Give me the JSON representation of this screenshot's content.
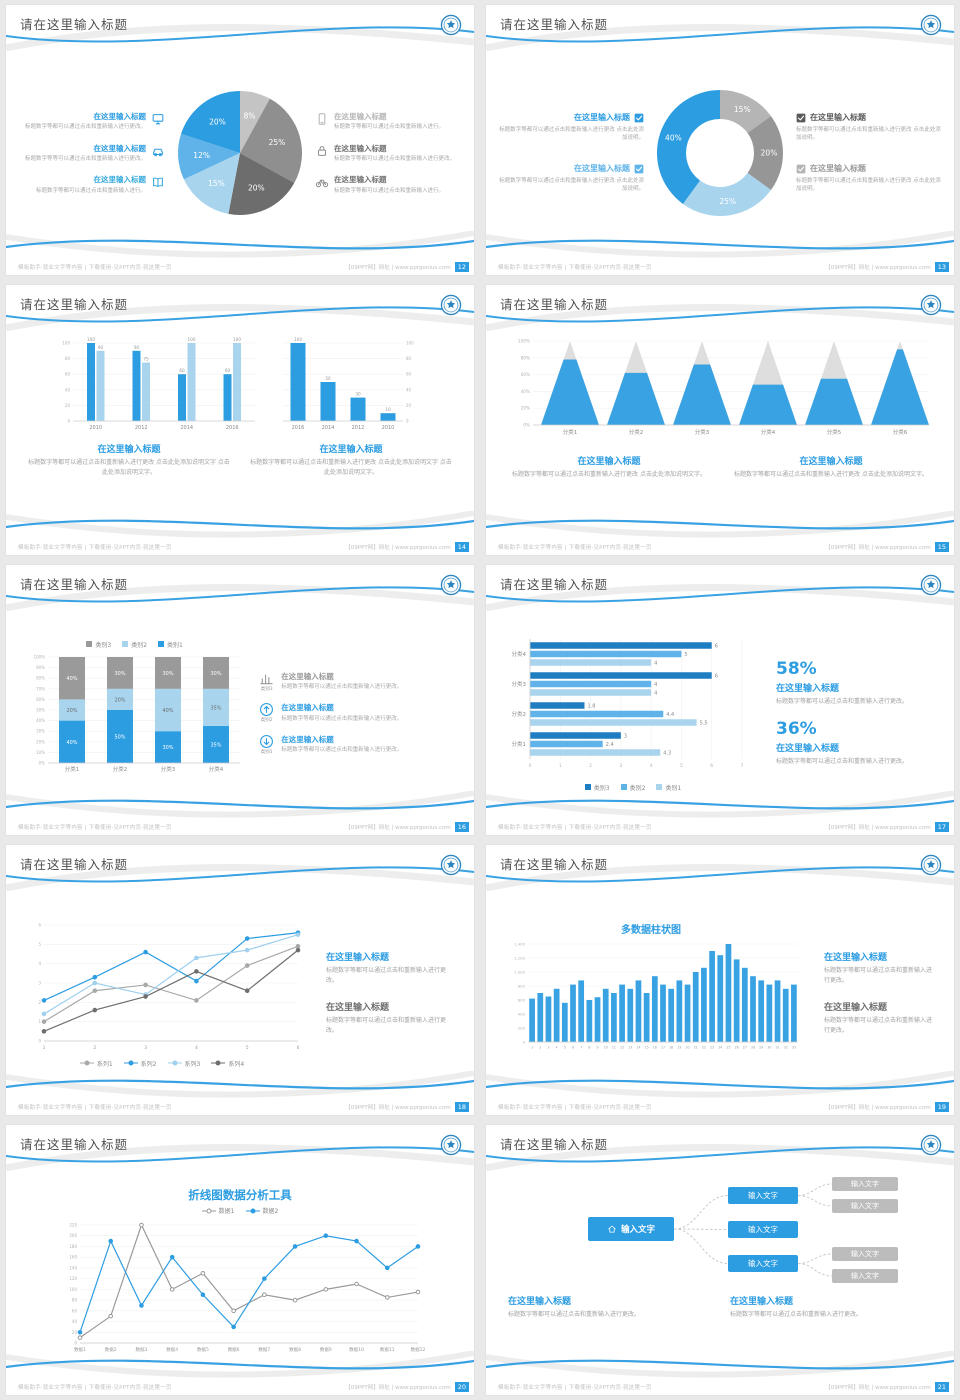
{
  "footer": {
    "left": "模板助手:就业文字等内容 | 下载使用·见PPT内页·就这第一页",
    "right": "【09PPT网】网址 | www.pptgenius.com"
  },
  "colors": {
    "accent_blue": "#2d9de2",
    "mid_blue": "#5fb3e8",
    "light_blue": "#a8d4ee",
    "dark_blue": "#1f7ec2",
    "dark_gray": "#6f6f6f",
    "mid_gray": "#9a9a9a",
    "light_gray": "#d9d9d9",
    "title_text": "#4f4f4f",
    "desc_text": "#a3a3a3"
  },
  "slides": [
    {
      "title": "请在这里输入标题",
      "page": "12",
      "type": "pie_callouts",
      "chart_data": {
        "type": "pie",
        "slices": [
          {
            "label": "8%",
            "value": 8,
            "color": "#c4c4c4"
          },
          {
            "label": "25%",
            "value": 25,
            "color": "#8f8f8f"
          },
          {
            "label": "20%",
            "value": 20,
            "color": "#6d6d6d"
          },
          {
            "label": "15%",
            "value": 15,
            "color": "#a8d4ee"
          },
          {
            "label": "12%",
            "value": 12,
            "color": "#5fb3e8"
          },
          {
            "label": "20%",
            "value": 20,
            "color": "#2d9de2"
          }
        ]
      },
      "left_items": [
        {
          "title": "在这里输入标题",
          "title_color": "#2d9de2",
          "icon": "monitor",
          "icon_color": "#2d9de2",
          "desc": "标题数字等都可以通过点击和重新输入进行更改。"
        },
        {
          "title": "在这里输入标题",
          "title_color": "#2d9de2",
          "icon": "car",
          "icon_color": "#2d9de2",
          "desc": "标题数字等等可以通过点击和重新输入进行更改。"
        },
        {
          "title": "在这里输入标题",
          "title_color": "#35aadc",
          "icon": "book",
          "icon_color": "#35aadc",
          "desc": "标题数字等都可以通过点击和重新输入进行。"
        }
      ],
      "right_items": [
        {
          "title": "在这里输入标题",
          "title_color": "#b5b5b5",
          "icon": "phone",
          "icon_color": "#b5b5b5",
          "desc": "标题数字等都可以通过点击和重新输入进行。"
        },
        {
          "title": "在这里输入标题",
          "title_color": "#6f6f6f",
          "icon": "lock",
          "icon_color": "#8f8f8f",
          "desc": "标题数字等都可以通过点击和重新输入进行更改。"
        },
        {
          "title": "在这里输入标题",
          "title_color": "#6f6f6f",
          "icon": "bike",
          "icon_color": "#8f8f8f",
          "desc": "标题数字等都可以通过点击和重新输入进行。"
        }
      ]
    },
    {
      "title": "请在这里输入标题",
      "page": "13",
      "type": "donut_checklist",
      "chart_data": {
        "type": "donut",
        "slices": [
          {
            "label": "15%",
            "value": 15,
            "color": "#b5b5b5"
          },
          {
            "label": "20%",
            "value": 20,
            "color": "#969696"
          },
          {
            "label": "25%",
            "value": 25,
            "color": "#a8d4ee"
          },
          {
            "label": "40%",
            "value": 40,
            "color": "#2d9de2"
          }
        ]
      },
      "left_items": [
        {
          "title": "在这里输入标题",
          "title_color": "#2d9de2",
          "check_color": "#2d9de2",
          "desc": "标题数字等都可以通过点击和重新输入进行更改 点击此处添加说明。"
        },
        {
          "title": "在这里输入标题",
          "title_color": "#5fb3e8",
          "check_color": "#5fb3e8",
          "desc": "标题数字等都可以通过点击和重新输入进行更改 点击此处添加说明。"
        }
      ],
      "right_items": [
        {
          "title": "在这里输入标题",
          "title_color": "#5a5a5a",
          "check_color": "#5a5a5a",
          "desc": "标题数字等都可以通过点击和重新输入进行更改 点击此处添加说明。"
        },
        {
          "title": "在这里输入标题",
          "title_color": "#9a9a9a",
          "check_color": "#b5b5b5",
          "desc": "标题数字等都可以通过点击和重新输入进行更改 点击此处添加说明。"
        }
      ]
    },
    {
      "title": "请在这里输入标题",
      "page": "14",
      "type": "dual_bar",
      "chart_data": [
        {
          "type": "bar",
          "categories": [
            "2010",
            "2012",
            "2014",
            "2016"
          ],
          "series": [
            {
              "name": "系列1",
              "values": [
                100,
                90,
                60,
                60
              ]
            },
            {
              "name": "系列2",
              "values": [
                90,
                75,
                100,
                100
              ]
            }
          ],
          "colors": [
            "#2d9de2",
            "#a8d4ee"
          ],
          "ymax": 100,
          "ystep": 20,
          "axis": "left"
        },
        {
          "type": "bar",
          "categories": [
            "2016",
            "2014",
            "2012",
            "2010"
          ],
          "series": [
            {
              "name": "系列1",
              "values": [
                100,
                50,
                30,
                10
              ]
            }
          ],
          "colors": [
            "#2d9de2"
          ],
          "ymax": 100,
          "ystep": 20,
          "axis": "right"
        }
      ],
      "blocks": [
        {
          "title": "在这里输入标题",
          "title_color": "#2d9de2",
          "desc": "标题数字等都可以通过点击和重新输入进行更改 点击此处添加说明文字 点击此处添加说明文字。"
        },
        {
          "title": "在这里输入标题",
          "title_color": "#2d9de2",
          "desc": "标题数字等都可以通过点击和重新输入进行更改 点击此处添加说明文字 点击此处添加说明文字。"
        }
      ]
    },
    {
      "title": "请在这里输入标题",
      "page": "15",
      "type": "pyramid",
      "chart_data": {
        "type": "pyramid",
        "categories": [
          "分类1",
          "分类2",
          "分类3",
          "分类4",
          "分类5",
          "分类6"
        ],
        "values_percent": [
          78,
          62,
          72,
          48,
          55,
          90
        ],
        "ylabels": [
          "0%",
          "20%",
          "40%",
          "60%",
          "80%",
          "100%"
        ]
      },
      "blocks": [
        {
          "title": "在这里输入标题",
          "title_color": "#2d9de2",
          "desc": "标题数字等都可以通过点击和重新输入进行更改 点击此处添加说明文字。"
        },
        {
          "title": "在这里输入标题",
          "title_color": "#2d9de2",
          "desc": "标题数字等都可以通过点击和重新输入进行更改 点击此处添加说明文字。"
        }
      ]
    },
    {
      "title": "请在这里输入标题",
      "page": "16",
      "type": "stacked_bar",
      "chart_data": {
        "type": "stacked_bar",
        "categories": [
          "分类1",
          "分类2",
          "分类3",
          "分类4"
        ],
        "series": [
          {
            "name": "类别1",
            "color": "#2d9de2",
            "label_color": "#ffffff",
            "values": [
              40,
              50,
              30,
              35
            ]
          },
          {
            "name": "类别2",
            "color": "#a8d4ee",
            "label_color": "#6b6b6b",
            "values": [
              20,
              20,
              40,
              35
            ]
          },
          {
            "name": "类别3",
            "color": "#9a9a9a",
            "label_color": "#ffffff",
            "values": [
              40,
              30,
              30,
              30
            ]
          }
        ],
        "legend": [
          {
            "label": "类别3",
            "color": "#9a9a9a"
          },
          {
            "label": "类别2",
            "color": "#a8d4ee"
          },
          {
            "label": "类别1",
            "color": "#2d9de2"
          }
        ]
      },
      "items": [
        {
          "icon": "barchart",
          "icon_color": "#9a9a9a",
          "caption": "类别3",
          "title": "在这里输入标题",
          "title_color": "#9a9a9a",
          "desc": "标题数字等都可以通过点击和重新输入进行更改。"
        },
        {
          "icon": "upload",
          "icon_color": "#2d9de2",
          "caption": "类别2",
          "title": "在这里输入标题",
          "title_color": "#2d9de2",
          "desc": "标题数字等都可以通过点击和重新输入进行更改。"
        },
        {
          "icon": "download",
          "icon_color": "#2d9de2",
          "caption": "类别1",
          "title": "在这里输入标题",
          "title_color": "#2d9de2",
          "desc": "标题数字等都可以通过点击和重新输入进行更改。"
        }
      ]
    },
    {
      "title": "请在这里输入标题",
      "page": "17",
      "type": "hbar_stats",
      "chart_data": {
        "type": "hbar",
        "categories": [
          "分类4",
          "分类3",
          "分类2",
          "分类1"
        ],
        "series": [
          {
            "name": "类别3",
            "color": "#1f7ec2",
            "values": [
              6,
              6,
              1.8,
              3
            ]
          },
          {
            "name": "类别2",
            "color": "#5fb3e8",
            "values": [
              5,
              4,
              4.4,
              2.4
            ]
          },
          {
            "name": "类别1",
            "color": "#a8d4ee",
            "values": [
              4,
              4,
              5.5,
              4.3
            ]
          }
        ],
        "xmax": 7,
        "xticks": [
          0,
          1,
          2,
          3,
          4,
          5,
          6,
          7
        ]
      },
      "stats": [
        {
          "value": "58%",
          "title": "在这里输入标题",
          "desc": "标题数字等都可以通过点击和重新输入进行更改。"
        },
        {
          "value": "36%",
          "title": "在这里输入标题",
          "desc": "标题数字等都可以通过点击和重新输入进行更改。"
        }
      ]
    },
    {
      "title": "请在这里输入标题",
      "page": "18",
      "type": "line_multi",
      "chart_data": {
        "type": "line",
        "x": [
          1,
          2,
          3,
          4,
          5,
          6
        ],
        "ymax": 6,
        "ystep": 1,
        "series": [
          {
            "name": "系列1",
            "color": "#a8a8a8",
            "marker": "filled",
            "values": [
              1.0,
              2.6,
              2.9,
              2.1,
              3.9,
              4.9
            ]
          },
          {
            "name": "系列2",
            "color": "#2d9de2",
            "marker": "filled",
            "values": [
              2.1,
              3.3,
              4.6,
              3.1,
              5.3,
              5.6
            ]
          },
          {
            "name": "系列3",
            "color": "#9fd0ee",
            "marker": "filled",
            "values": [
              1.4,
              3.0,
              2.4,
              4.3,
              4.7,
              5.5
            ]
          },
          {
            "name": "系列4",
            "color": "#6f6f6f",
            "marker": "filled",
            "values": [
              0.5,
              1.6,
              2.3,
              3.6,
              2.6,
              4.7
            ]
          }
        ]
      },
      "blocks": [
        {
          "title": "在这里输入标题",
          "title_color": "#2d9de2",
          "desc": "标题数字等都可以通过点击和重新输入进行更改。"
        },
        {
          "title": "在这里输入标题",
          "title_color": "#6f6f6f",
          "desc": "标题数字等都可以通过点击和重新输入进行更改。"
        }
      ]
    },
    {
      "title": "请在这里输入标题",
      "page": "19",
      "type": "columns_many",
      "chart_title": "多数据柱状图",
      "chart_data": {
        "type": "bar",
        "ymax": 1400,
        "ystep": 200,
        "x_labels": [
          "1",
          "2",
          "3",
          "4",
          "5",
          "6",
          "7",
          "8",
          "9",
          "10",
          "11",
          "12",
          "13",
          "14",
          "15",
          "16",
          "17",
          "18",
          "19",
          "20",
          "21",
          "22",
          "23",
          "24",
          "25",
          "26",
          "27",
          "28",
          "29",
          "30",
          "31",
          "32",
          "33"
        ],
        "values": [
          620,
          700,
          650,
          760,
          560,
          820,
          880,
          600,
          640,
          760,
          700,
          820,
          760,
          880,
          700,
          940,
          820,
          760,
          880,
          820,
          1000,
          1060,
          1300,
          1240,
          1400,
          1180,
          1060,
          940,
          880,
          820,
          880,
          760,
          820
        ]
      },
      "blocks": [
        {
          "title": "在这里输入标题",
          "title_color": "#2d9de2",
          "desc": "标题数字等都可以通过点击和重新输入进行更改。"
        },
        {
          "title": "在这里输入标题",
          "title_color": "#6f6f6f",
          "desc": "标题数字等都可以通过点击和重新输入进行更改。"
        }
      ]
    },
    {
      "title": "请在这里输入标题",
      "page": "20",
      "type": "line_two",
      "chart_title": "折线图数据分析工具",
      "chart_data": {
        "type": "line",
        "ymax": 220,
        "ystep": 20,
        "categories": [
          "数据1",
          "数据2",
          "数据3",
          "数据4",
          "数据5",
          "数据6",
          "数据7",
          "数据8",
          "数据9",
          "数据10",
          "数据11",
          "数据12"
        ],
        "series": [
          {
            "name": "数据1",
            "color": "#9a9a9a",
            "marker": "open",
            "values": [
              10,
              50,
              220,
              100,
              130,
              60,
              90,
              80,
              100,
              110,
              85,
              95
            ]
          },
          {
            "name": "数据2",
            "color": "#2d9de2",
            "marker": "filled",
            "values": [
              20,
              190,
              70,
              160,
              90,
              30,
              120,
              180,
              200,
              190,
              140,
              180
            ]
          }
        ]
      }
    },
    {
      "title": "请在这里输入标题",
      "page": "21",
      "type": "org_diagram",
      "root_label": "输入文字",
      "mid_labels": [
        "输入文字",
        "输入文字",
        "输入文字"
      ],
      "leaf_labels": [
        "输入文字",
        "输入文字",
        "输入文字",
        "输入文字"
      ],
      "blocks": [
        {
          "title": "在这里输入标题",
          "title_color": "#2d9de2",
          "desc": "标题数字等都可以通过点击和重新输入进行更改。"
        },
        {
          "title": "在这里输入标题",
          "title_color": "#2d9de2",
          "desc": "标题数字等都可以通过点击和重新输入进行更改。"
        }
      ]
    }
  ]
}
